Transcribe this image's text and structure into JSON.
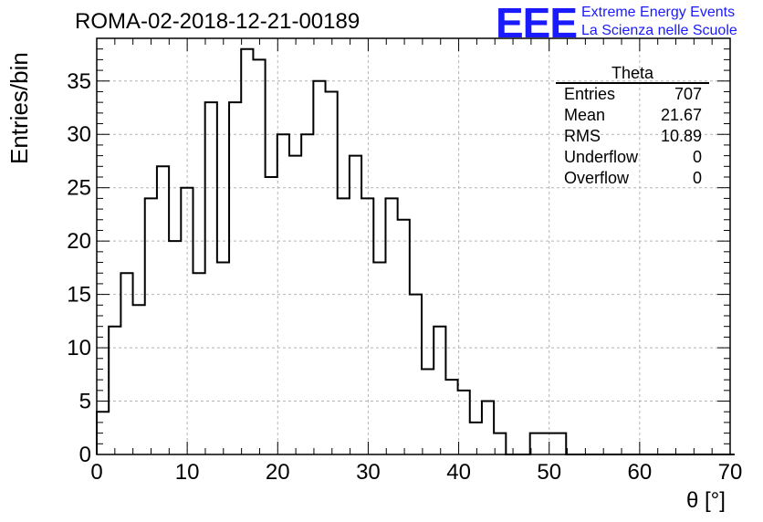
{
  "title": "ROMA-02-2018-12-21-00189",
  "logo": {
    "mark": "EEE",
    "line1": "Extreme Energy Events",
    "line2": "La Scienza nelle Scuole"
  },
  "stats": {
    "name": "Theta",
    "rows": [
      {
        "label": "Entries",
        "value": "707"
      },
      {
        "label": "Mean",
        "value": "21.67"
      },
      {
        "label": "RMS",
        "value": "10.89"
      },
      {
        "label": "Underflow",
        "value": "0"
      },
      {
        "label": "Overflow",
        "value": "0"
      }
    ]
  },
  "chart_data": {
    "type": "bar",
    "style": "step-histogram",
    "xlabel": "θ [°]",
    "ylabel": "Entries/bin",
    "xlim": [
      0,
      70
    ],
    "ylim": [
      0,
      39
    ],
    "xticks": [
      0,
      10,
      20,
      30,
      40,
      50,
      60,
      70
    ],
    "yticks": [
      0,
      5,
      10,
      15,
      20,
      25,
      30,
      35
    ],
    "grid": true,
    "bin_width": 1.33,
    "bin_start": 0,
    "values": [
      4,
      12,
      17,
      14,
      24,
      27,
      20,
      25,
      17,
      33,
      18,
      33,
      38,
      37,
      26,
      30,
      28,
      30,
      35,
      34,
      24,
      28,
      24,
      18,
      24,
      22,
      15,
      8,
      12,
      7,
      6,
      3,
      5,
      2,
      0,
      0,
      2,
      2,
      2,
      0,
      0,
      0,
      0,
      0,
      0,
      0,
      0,
      0,
      0,
      0,
      0,
      0,
      0
    ],
    "line_color": "#000000",
    "grid_color": "#b4b4b4"
  }
}
